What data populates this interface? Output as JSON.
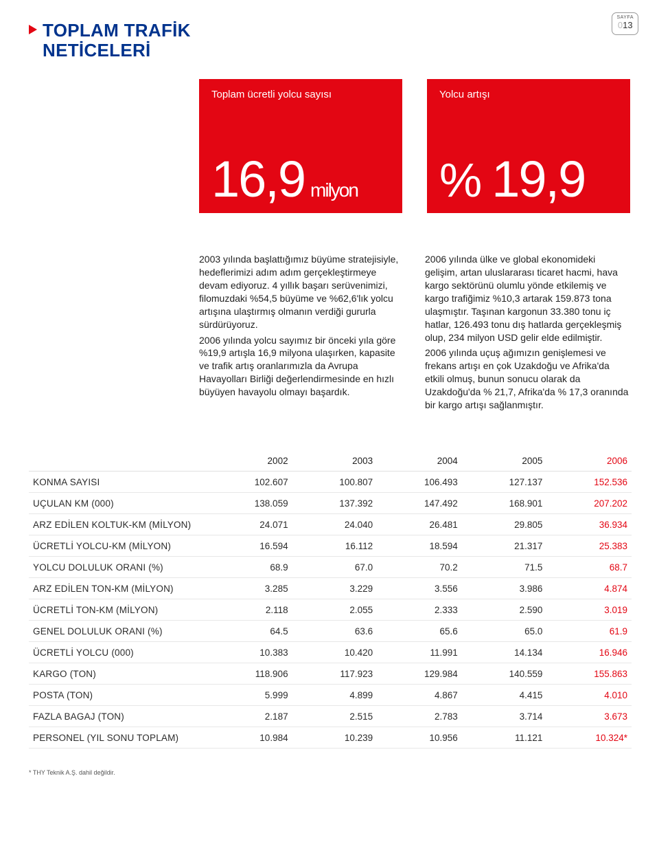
{
  "page_badge": {
    "label": "SAYFA",
    "number": "13"
  },
  "title_line1": "TOPLAM TRAFİK",
  "title_line2": "NETİCELERİ",
  "kpi": {
    "left": {
      "label": "Toplam ücretli yolcu sayısı",
      "value": "16,9",
      "unit": "milyon"
    },
    "right": {
      "label": "Yolcu artışı",
      "percent": "%",
      "value": "19,9"
    }
  },
  "body": {
    "col1": "2003 yılında başlattığımız büyüme stratejisiyle, hedeflerimizi adım adım gerçekleştirmeye devam ediyoruz. 4 yıllık başarı serüvenimizi, filomuzdaki %54,5 büyüme ve %62,6'lık yolcu artışına ulaştırmış olmanın verdiği gururla sürdürüyoruz.",
    "col1b": "2006 yılında yolcu sayımız bir önceki yıla göre %19,9 artışla 16,9 milyona ulaşırken, kapasite ve trafik artış oranlarımızla da Avrupa Havayolları Birliği değerlendirmesinde en hızlı büyüyen havayolu olmayı başardık.",
    "col2": "2006 yılında ülke ve global ekonomideki gelişim, artan uluslararası ticaret hacmi, hava kargo sektörünü olumlu yönde etkilemiş ve kargo trafiğimiz %10,3 artarak 159.873 tona ulaşmıştır. Taşınan kargonun 33.380 tonu iç hatlar, 126.493 tonu dış hatlarda gerçekleşmiş olup, 234 milyon USD gelir elde edilmiştir.",
    "col2b": "2006 yılında uçuş ağımızın genişlemesi ve frekans artışı en çok Uzakdoğu ve Afrika'da etkili olmuş, bunun sonucu olarak da Uzakdoğu'da % 21,7, Afrika'da % 17,3 oranında bir kargo artışı sağlanmıştır."
  },
  "table": {
    "years": [
      "2002",
      "2003",
      "2004",
      "2005",
      "2006"
    ],
    "highlight_col": 4,
    "rows": [
      {
        "label": "KONMA SAYISI",
        "vals": [
          "102.607",
          "100.807",
          "106.493",
          "127.137",
          "152.536"
        ]
      },
      {
        "label": "UÇULAN KM (000)",
        "vals": [
          "138.059",
          "137.392",
          "147.492",
          "168.901",
          "207.202"
        ]
      },
      {
        "label": "ARZ EDİLEN KOLTUK-KM (MİLYON)",
        "vals": [
          "24.071",
          "24.040",
          "26.481",
          "29.805",
          "36.934"
        ]
      },
      {
        "label": "ÜCRETLİ YOLCU-KM (MİLYON)",
        "vals": [
          "16.594",
          "16.112",
          "18.594",
          "21.317",
          "25.383"
        ]
      },
      {
        "label": "YOLCU DOLULUK ORANI (%)",
        "vals": [
          "68.9",
          "67.0",
          "70.2",
          "71.5",
          "68.7"
        ]
      },
      {
        "label": "ARZ EDİLEN TON-KM (MİLYON)",
        "vals": [
          "3.285",
          "3.229",
          "3.556",
          "3.986",
          "4.874"
        ]
      },
      {
        "label": "ÜCRETLİ TON-KM (MİLYON)",
        "vals": [
          "2.118",
          "2.055",
          "2.333",
          "2.590",
          "3.019"
        ]
      },
      {
        "label": "GENEL DOLULUK ORANI (%)",
        "vals": [
          "64.5",
          "63.6",
          "65.6",
          "65.0",
          "61.9"
        ]
      },
      {
        "label": "ÜCRETLİ YOLCU (000)",
        "vals": [
          "10.383",
          "10.420",
          "11.991",
          "14.134",
          "16.946"
        ]
      },
      {
        "label": "KARGO (TON)",
        "vals": [
          "118.906",
          "117.923",
          "129.984",
          "140.559",
          "155.863"
        ]
      },
      {
        "label": "POSTA (TON)",
        "vals": [
          "5.999",
          "4.899",
          "4.867",
          "4.415",
          "4.010"
        ]
      },
      {
        "label": "FAZLA BAGAJ (TON)",
        "vals": [
          "2.187",
          "2.515",
          "2.783",
          "3.714",
          "3.673"
        ]
      },
      {
        "label": "PERSONEL (YIL SONU TOPLAM)",
        "vals": [
          "10.984",
          "10.239",
          "10.956",
          "11.121",
          "10.324*"
        ]
      }
    ]
  },
  "footnote": "* THY Teknik A.Ş. dahil değildir.",
  "colors": {
    "brand_red": "#e30613",
    "brand_blue": "#00338d",
    "text": "#2b2b2b",
    "rule": "#e7e7e7",
    "bg": "#ffffff"
  }
}
